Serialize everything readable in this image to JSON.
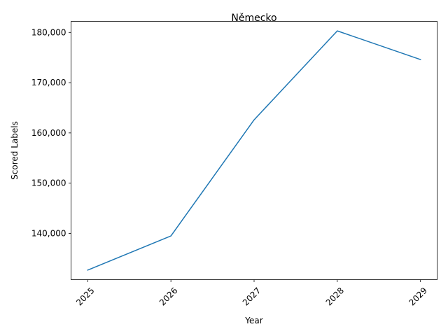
{
  "chart_data": {
    "type": "line",
    "title": "Německo",
    "xlabel": "Year",
    "ylabel": "Scored Labels",
    "x": [
      "2025",
      "2026",
      "2027",
      "2028",
      "2029"
    ],
    "series": [
      {
        "values": [
          132700,
          139500,
          162600,
          180300,
          174600
        ]
      }
    ],
    "ylim": [
      130800,
      182200
    ],
    "yticks": [
      140000,
      150000,
      160000,
      170000,
      180000
    ],
    "ytick_labels": [
      "140,000",
      "150,000",
      "160,000",
      "170,000",
      "180,000"
    ],
    "grid": false,
    "colors": {
      "line": "#1f77b4"
    }
  }
}
